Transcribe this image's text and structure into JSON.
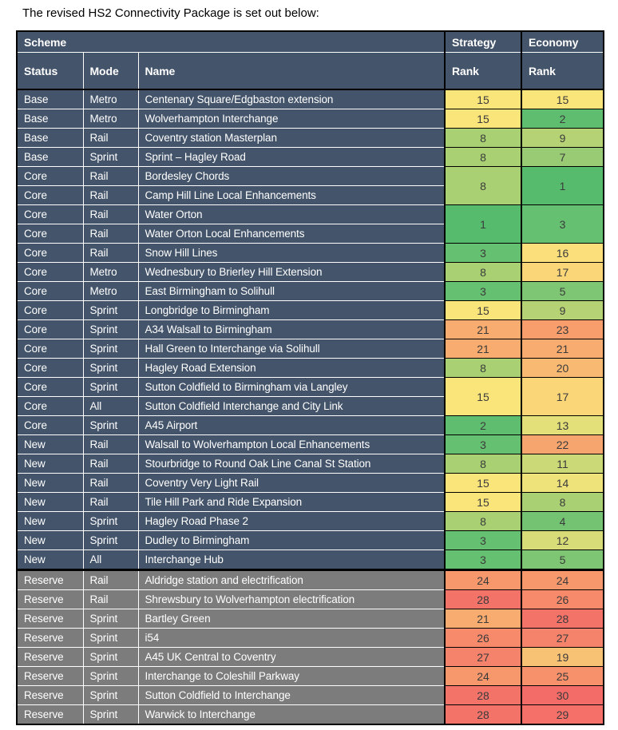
{
  "page": {
    "title": "The revised HS2 Connectivity Package is set out below:"
  },
  "table": {
    "header": {
      "scheme": "Scheme",
      "status": "Status",
      "mode": "Mode",
      "name": "Name",
      "strategy": "Strategy",
      "economy": "Economy",
      "rank": "Rank"
    },
    "section_colors": {
      "base": "#44546A",
      "core": "#44546A",
      "new": "#44546A",
      "reserve": "#7C7C7C"
    },
    "rank_colors": {
      "1": "#57BB6D",
      "2": "#5FBD70",
      "3": "#66C071",
      "4": "#73C373",
      "5": "#7FC674",
      "7": "#98CB74",
      "8": "#A9D073",
      "9": "#B5D375",
      "11": "#CBD977",
      "12": "#D7DC78",
      "13": "#E3DF79",
      "14": "#EEE27A",
      "15": "#FAE57B",
      "16": "#FADF7A",
      "17": "#FAD679",
      "19": "#F8C275",
      "20": "#F8BA73",
      "21": "#F8AC6F",
      "22": "#F7A56E",
      "23": "#F79E6C",
      "24": "#F6986C",
      "25": "#F6916B",
      "26": "#F68A6B",
      "27": "#F5826A",
      "28": "#F47369",
      "29": "#F47069",
      "30": "#F46C68"
    },
    "rows": [
      {
        "status": "Base",
        "mode": "Metro",
        "name": "Centenary Square/Edgbaston extension",
        "section": "base",
        "strategy": {
          "rank": "15"
        },
        "economy": {
          "rank": "15"
        }
      },
      {
        "status": "Base",
        "mode": "Metro",
        "name": "Wolverhampton Interchange",
        "section": "base",
        "strategy": {
          "rank": "15"
        },
        "economy": {
          "rank": "2"
        }
      },
      {
        "status": "Base",
        "mode": "Rail",
        "name": "Coventry station Masterplan",
        "section": "base",
        "strategy": {
          "rank": "8"
        },
        "economy": {
          "rank": "9"
        }
      },
      {
        "status": "Base",
        "mode": "Sprint",
        "name": "Sprint – Hagley Road",
        "section": "base",
        "strategy": {
          "rank": "8"
        },
        "economy": {
          "rank": "7"
        }
      },
      {
        "status": "Core",
        "mode": "Rail",
        "name": "Bordesley Chords",
        "section": "core",
        "strategy": {
          "rank": "8",
          "rowspan": 2
        },
        "economy": {
          "rank": "1",
          "rowspan": 2
        }
      },
      {
        "status": "Core",
        "mode": "Rail",
        "name": "Camp Hill Line Local Enhancements",
        "section": "core"
      },
      {
        "status": "Core",
        "mode": "Rail",
        "name": "Water Orton",
        "section": "core",
        "strategy": {
          "rank": "1",
          "rowspan": 2
        },
        "economy": {
          "rank": "3",
          "rowspan": 2
        }
      },
      {
        "status": "Core",
        "mode": "Rail",
        "name": "Water Orton Local Enhancements",
        "section": "core"
      },
      {
        "status": "Core",
        "mode": "Rail",
        "name": "Snow Hill Lines",
        "section": "core",
        "strategy": {
          "rank": "3"
        },
        "economy": {
          "rank": "16"
        }
      },
      {
        "status": "Core",
        "mode": "Metro",
        "name": "Wednesbury to Brierley Hill Extension",
        "section": "core",
        "strategy": {
          "rank": "8"
        },
        "economy": {
          "rank": "17"
        }
      },
      {
        "status": "Core",
        "mode": "Metro",
        "name": "East Birmingham to Solihull",
        "section": "core",
        "strategy": {
          "rank": "3"
        },
        "economy": {
          "rank": "5"
        }
      },
      {
        "status": "Core",
        "mode": "Sprint",
        "name": "Longbridge to Birmingham",
        "section": "core",
        "strategy": {
          "rank": "15"
        },
        "economy": {
          "rank": "9"
        }
      },
      {
        "status": "Core",
        "mode": "Sprint",
        "name": "A34 Walsall to Birmingham",
        "section": "core",
        "strategy": {
          "rank": "21"
        },
        "economy": {
          "rank": "23"
        }
      },
      {
        "status": "Core",
        "mode": "Sprint",
        "name": "Hall Green to Interchange via Solihull",
        "section": "core",
        "strategy": {
          "rank": "21"
        },
        "economy": {
          "rank": "21"
        }
      },
      {
        "status": "Core",
        "mode": "Sprint",
        "name": "Hagley Road Extension",
        "section": "core",
        "strategy": {
          "rank": "8"
        },
        "economy": {
          "rank": "20"
        }
      },
      {
        "status": "Core",
        "mode": "Sprint",
        "name": "Sutton Coldfield to Birmingham via Langley",
        "section": "core",
        "strategy": {
          "rank": "15",
          "rowspan": 2
        },
        "economy": {
          "rank": "17",
          "rowspan": 2
        }
      },
      {
        "status": "Core",
        "mode": "All",
        "name": "Sutton Coldfield Interchange and City Link",
        "section": "core"
      },
      {
        "status": "Core",
        "mode": "Sprint",
        "name": "A45 Airport",
        "section": "core",
        "strategy": {
          "rank": "2"
        },
        "economy": {
          "rank": "13"
        }
      },
      {
        "status": "New",
        "mode": "Rail",
        "name": "Walsall to Wolverhampton Local Enhancements",
        "section": "new",
        "strategy": {
          "rank": "3"
        },
        "economy": {
          "rank": "22"
        }
      },
      {
        "status": "New",
        "mode": "Rail",
        "name": "Stourbridge to Round Oak Line Canal St Station",
        "section": "new",
        "strategy": {
          "rank": "8"
        },
        "economy": {
          "rank": "11"
        }
      },
      {
        "status": "New",
        "mode": "Rail",
        "name": "Coventry Very Light Rail",
        "section": "new",
        "strategy": {
          "rank": "15"
        },
        "economy": {
          "rank": "14"
        }
      },
      {
        "status": "New",
        "mode": "Rail",
        "name": "Tile Hill Park and Ride Expansion",
        "section": "new",
        "strategy": {
          "rank": "15"
        },
        "economy": {
          "rank": "8"
        }
      },
      {
        "status": "New",
        "mode": "Sprint",
        "name": "Hagley Road Phase 2",
        "section": "new",
        "strategy": {
          "rank": "8"
        },
        "economy": {
          "rank": "4"
        }
      },
      {
        "status": "New",
        "mode": "Sprint",
        "name": "Dudley to Birmingham",
        "section": "new",
        "strategy": {
          "rank": "3"
        },
        "economy": {
          "rank": "12"
        }
      },
      {
        "status": "New",
        "mode": "All",
        "name": "Interchange Hub",
        "section": "new",
        "strategy": {
          "rank": "3"
        },
        "economy": {
          "rank": "5"
        }
      },
      {
        "status": "Reserve",
        "mode": "Rail",
        "name": "Aldridge station and electrification",
        "section": "reserve",
        "strategy": {
          "rank": "24"
        },
        "economy": {
          "rank": "24"
        }
      },
      {
        "status": "Reserve",
        "mode": "Rail",
        "name": "Shrewsbury to Wolverhampton electrification",
        "section": "reserve",
        "strategy": {
          "rank": "28"
        },
        "economy": {
          "rank": "26"
        }
      },
      {
        "status": "Reserve",
        "mode": "Sprint",
        "name": "Bartley Green",
        "section": "reserve",
        "strategy": {
          "rank": "21"
        },
        "economy": {
          "rank": "28"
        }
      },
      {
        "status": "Reserve",
        "mode": "Sprint",
        "name": "i54",
        "section": "reserve",
        "strategy": {
          "rank": "26"
        },
        "economy": {
          "rank": "27"
        }
      },
      {
        "status": "Reserve",
        "mode": "Sprint",
        "name": "A45 UK Central to Coventry",
        "section": "reserve",
        "strategy": {
          "rank": "27"
        },
        "economy": {
          "rank": "19"
        }
      },
      {
        "status": "Reserve",
        "mode": "Sprint",
        "name": "Interchange to Coleshill Parkway",
        "section": "reserve",
        "strategy": {
          "rank": "24"
        },
        "economy": {
          "rank": "25"
        }
      },
      {
        "status": "Reserve",
        "mode": "Sprint",
        "name": "Sutton Coldfield to Interchange",
        "section": "reserve",
        "strategy": {
          "rank": "28"
        },
        "economy": {
          "rank": "30"
        }
      },
      {
        "status": "Reserve",
        "mode": "Sprint",
        "name": "Warwick to Interchange",
        "section": "reserve",
        "strategy": {
          "rank": "28"
        },
        "economy": {
          "rank": "29"
        }
      }
    ]
  }
}
